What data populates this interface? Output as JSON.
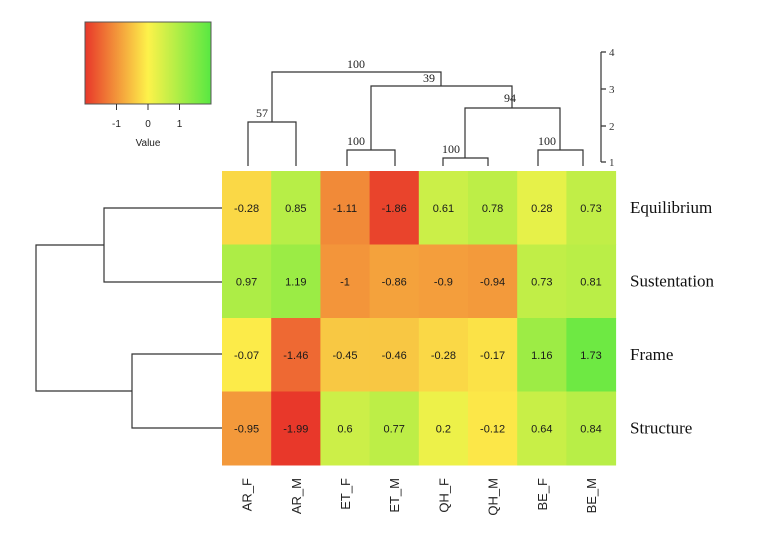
{
  "chart_data": {
    "type": "heatmap",
    "rows": [
      "Equilibrium",
      "Sustentation",
      "Frame",
      "Structure"
    ],
    "columns": [
      "AR_F",
      "AR_M",
      "ET_F",
      "ET_M",
      "QH_F",
      "QH_M",
      "BE_F",
      "BE_M"
    ],
    "values": [
      [
        -0.28,
        0.85,
        -1.11,
        -1.86,
        0.61,
        0.78,
        0.28,
        0.73
      ],
      [
        0.97,
        1.19,
        -1,
        -0.86,
        -0.9,
        -0.94,
        0.73,
        0.81
      ],
      [
        -0.07,
        -1.46,
        -0.45,
        -0.46,
        -0.28,
        -0.17,
        1.16,
        1.73
      ],
      [
        -0.95,
        -1.99,
        0.6,
        0.77,
        0.2,
        -0.12,
        0.64,
        0.84
      ]
    ],
    "value_labels": [
      [
        "-0.28",
        "0.85",
        "-1.11",
        "-1.86",
        "0.61",
        "0.78",
        "0.28",
        "0.73"
      ],
      [
        "0.97",
        "1.19",
        "-1",
        "-0.86",
        "-0.9",
        "-0.94",
        "0.73",
        "0.81"
      ],
      [
        "-0.07",
        "-1.46",
        "-0.45",
        "-0.46",
        "-0.28",
        "-0.17",
        "1.16",
        "1.73"
      ],
      [
        "-0.95",
        "-1.99",
        "0.6",
        "0.77",
        "0.2",
        "-0.12",
        "0.64",
        "0.84"
      ]
    ],
    "color_scale": {
      "low": "#e8372a",
      "mid": "#fdf24a",
      "high": "#58e842",
      "range": [
        -2,
        2
      ],
      "title": "Value",
      "ticks": [
        "-1",
        "0",
        "1"
      ]
    },
    "column_dendrogram": {
      "scale_ticks": [
        "1",
        "2",
        "3",
        "4"
      ],
      "bootstrap_labels": [
        "100",
        "39",
        "94",
        "57",
        "100",
        "100",
        "100"
      ]
    },
    "legend_position": "top-left"
  }
}
